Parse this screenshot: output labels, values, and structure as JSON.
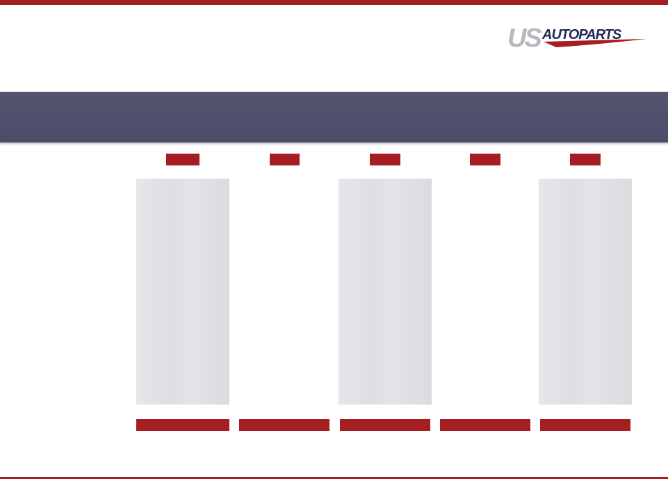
{
  "logo": {
    "text_us": "US",
    "text_autoparts": "AUTOPARTS",
    "colors": {
      "us": "#b8b9bf",
      "autoparts": "#1f2a55",
      "swoosh": "#a51e22"
    }
  },
  "theme": {
    "accent": "#a51e22",
    "banner": "#4f4e6c",
    "column_fill": "#e1e1e6"
  },
  "columns": [
    {
      "tag": "",
      "footer": "",
      "shaded": true
    },
    {
      "tag": "",
      "footer": "",
      "shaded": false
    },
    {
      "tag": "",
      "footer": "",
      "shaded": true
    },
    {
      "tag": "",
      "footer": "",
      "shaded": false
    },
    {
      "tag": "",
      "footer": "",
      "shaded": true
    }
  ]
}
